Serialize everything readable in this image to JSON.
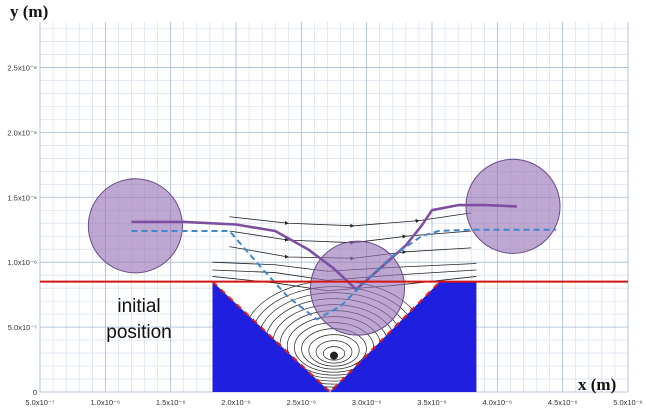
{
  "chart_data": {
    "type": "line",
    "xlabel": "x (m)",
    "ylabel": "y (m)",
    "xlim": [
      5e-07,
      5e-06
    ],
    "ylim": [
      0,
      2.85e-06
    ],
    "grid": true,
    "x_ticks": [
      {
        "value": 5e-07,
        "label": "5.0x10⁻⁷"
      },
      {
        "value": 1e-06,
        "label": "1.0x10⁻⁶"
      },
      {
        "value": 1.5e-06,
        "label": "1.5x10⁻⁶"
      },
      {
        "value": 2e-06,
        "label": "2.0x10⁻⁶"
      },
      {
        "value": 2.5e-06,
        "label": "2.5x10⁻⁶"
      },
      {
        "value": 3e-06,
        "label": "3.0x10⁻⁶"
      },
      {
        "value": 3.5e-06,
        "label": "3.5x10⁻⁶"
      },
      {
        "value": 4e-06,
        "label": "4.0x10⁻⁶"
      },
      {
        "value": 4.5e-06,
        "label": "4.5x10⁻⁶"
      },
      {
        "value": 5e-06,
        "label": "5.0x10⁻⁶"
      }
    ],
    "y_ticks": [
      {
        "value": 0,
        "label": "0"
      },
      {
        "value": 5e-07,
        "label": "5.0x10⁻⁷"
      },
      {
        "value": 1e-06,
        "label": "1.0x10⁻⁶"
      },
      {
        "value": 1.5e-06,
        "label": "1.5x10⁻⁶"
      },
      {
        "value": 2e-06,
        "label": "2.0x10⁻⁶"
      },
      {
        "value": 2.5e-06,
        "label": "2.5x10⁻⁶"
      }
    ],
    "initial_position_y": 8.5e-07,
    "annotation": "initial\nposition",
    "cavity": {
      "x_left": 1.82e-06,
      "x_right": 3.84e-06,
      "y_top": 8.5e-07,
      "y_bottom": 0,
      "notch": [
        [
          1.82e-06,
          8.5e-07
        ],
        [
          2.72e-06,
          0
        ],
        [
          3.56e-06,
          8.5e-07
        ]
      ]
    },
    "particles": [
      {
        "cx": 1.23e-06,
        "cy": 1.28e-06,
        "r": 3.6e-07
      },
      {
        "cx": 2.93e-06,
        "cy": 8e-07,
        "r": 3.6e-07
      },
      {
        "cx": 4.12e-06,
        "cy": 1.43e-06,
        "r": 3.6e-07
      }
    ],
    "series": [
      {
        "style": "solid",
        "color": "#7e4fa0",
        "x": [
          1.2e-06,
          1.6e-06,
          2e-06,
          2.3e-06,
          2.55e-06,
          2.75e-06,
          2.92e-06,
          3.1e-06,
          3.3e-06,
          3.42e-06,
          3.5e-06,
          3.7e-06,
          3.9e-06,
          4.15e-06
        ],
        "y": [
          1.31e-06,
          1.31e-06,
          1.29e-06,
          1.24e-06,
          1.1e-06,
          9.5e-07,
          7.9e-07,
          9.5e-07,
          1.13e-06,
          1.28e-06,
          1.4e-06,
          1.44e-06,
          1.44e-06,
          1.43e-06
        ]
      },
      {
        "style": "dashed",
        "color": "#3f87c8",
        "x": [
          1.2e-06,
          1.6e-06,
          1.95e-06,
          2.2e-06,
          2.4e-06,
          2.62e-06,
          2.8e-06,
          3e-06,
          3.2e-06,
          3.42e-06,
          3.55e-06,
          3.8e-06,
          4.3e-06,
          4.45e-06
        ],
        "y": [
          1.24e-06,
          1.24e-06,
          1.24e-06,
          9.5e-07,
          7.3e-07,
          5.6e-07,
          6.6e-07,
          8.6e-07,
          1.05e-06,
          1.2e-06,
          1.24e-06,
          1.25e-06,
          1.25e-06,
          1.25e-06
        ]
      }
    ],
    "streamlines": [
      [
        [
          1.95e-06,
          1.35e-06
        ],
        [
          2.4e-06,
          1.3e-06
        ],
        [
          2.9e-06,
          1.28e-06
        ],
        [
          3.4e-06,
          1.32e-06
        ],
        [
          3.8e-06,
          1.38e-06
        ]
      ],
      [
        [
          1.95e-06,
          1.24e-06
        ],
        [
          2.4e-06,
          1.17e-06
        ],
        [
          2.9e-06,
          1.15e-06
        ],
        [
          3.3e-06,
          1.2e-06
        ],
        [
          3.8e-06,
          1.24e-06
        ]
      ],
      [
        [
          1.95e-06,
          1.12e-06
        ],
        [
          2.4e-06,
          1.04e-06
        ],
        [
          2.9e-06,
          1.03e-06
        ],
        [
          3.3e-06,
          1.08e-06
        ],
        [
          3.8e-06,
          1.11e-06
        ]
      ],
      [
        [
          1.82e-06,
          1e-06
        ],
        [
          2.3e-06,
          9.8e-07
        ],
        [
          2.7e-06,
          9.3e-07
        ],
        [
          3.2e-06,
          9.6e-07
        ],
        [
          3.84e-06,
          9.9e-07
        ]
      ],
      [
        [
          1.82e-06,
          9.4e-07
        ],
        [
          2.3e-06,
          9.2e-07
        ],
        [
          2.7e-06,
          8.6e-07
        ],
        [
          3.2e-06,
          9e-07
        ],
        [
          3.84e-06,
          9.4e-07
        ]
      ],
      [
        [
          1.82e-06,
          8.9e-07
        ],
        [
          2.3e-06,
          8.4e-07
        ],
        [
          2.7e-06,
          7.8e-07
        ],
        [
          3.2e-06,
          8.2e-07
        ],
        [
          3.84e-06,
          8.9e-07
        ]
      ]
    ],
    "vortex": {
      "cx": 2.75e-06,
      "cy": 2.8e-07
    }
  }
}
